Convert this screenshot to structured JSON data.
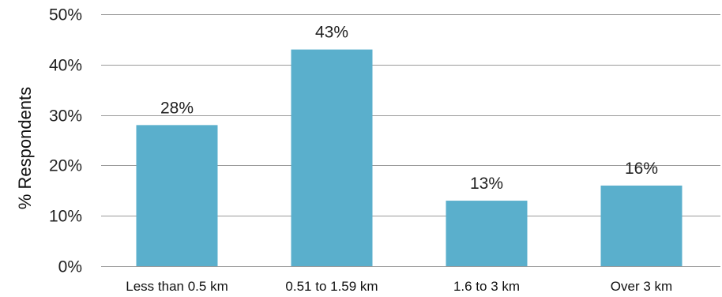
{
  "chart_data": {
    "type": "bar",
    "categories": [
      "Less than 0.5 km",
      "0.51 to 1.59 km",
      "1.6 to 3 km",
      "Over 3 km"
    ],
    "values": [
      28,
      43,
      13,
      16
    ],
    "data_labels": [
      "28%",
      "43%",
      "13%",
      "16%"
    ],
    "title": "",
    "xlabel": "",
    "ylabel": "% Respondents",
    "ylim": [
      0,
      50
    ],
    "yticks": [
      0,
      10,
      20,
      30,
      40,
      50
    ],
    "ytick_labels": [
      "0%",
      "10%",
      "20%",
      "30%",
      "40%",
      "50%"
    ],
    "grid": true,
    "legend": "none",
    "bar_color": "#5aafcc",
    "grid_color": "#9a9a9a"
  }
}
